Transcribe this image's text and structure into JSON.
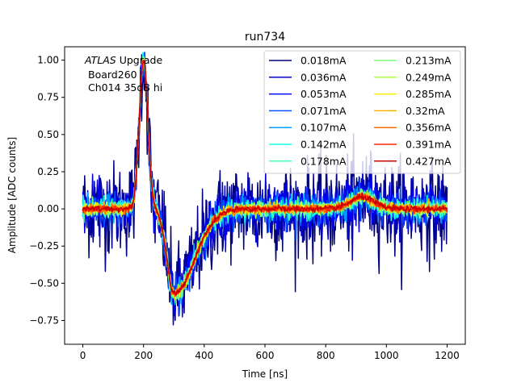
{
  "chart_data": {
    "type": "line",
    "title": "run734",
    "xlabel": "Time [ns]",
    "ylabel": "Amplitude [ADC counts]",
    "xlim": [
      -60,
      1260
    ],
    "ylim": [
      -0.91,
      1.09
    ],
    "xticks": [
      0,
      200,
      400,
      600,
      800,
      1000,
      1200
    ],
    "yticks": [
      -0.75,
      -0.5,
      -0.25,
      0.0,
      0.25,
      0.5,
      0.75,
      1.0
    ],
    "xtick_labels": [
      "0",
      "200",
      "400",
      "600",
      "800",
      "1000",
      "1200"
    ],
    "ytick_labels": [
      "−0.75",
      "−0.50",
      "−0.25",
      "0.00",
      "0.25",
      "0.50",
      "0.75",
      "1.00"
    ],
    "annotation": {
      "italic": "ATLAS",
      "line1_rest": " Upgrade",
      "line2": "Board260",
      "line3": "Ch014 35dB hi"
    },
    "legend_position": "top-right",
    "pulse_model": {
      "t_start": 0,
      "t_end": 1200,
      "t_step": 2,
      "baseline": 0.0,
      "peak_time": 200,
      "peak_amplitude": 1.0,
      "undershoot_time": 300,
      "undershoot_amplitude": -0.57,
      "bump_time": 920,
      "bump_amplitude": 0.08
    },
    "series": [
      {
        "name": "0.018mA",
        "color": "#00007f",
        "noise": 0.16
      },
      {
        "name": "0.036mA",
        "color": "#0000c9",
        "noise": 0.1
      },
      {
        "name": "0.053mA",
        "color": "#0000ff",
        "noise": 0.07
      },
      {
        "name": "0.071mA",
        "color": "#0050ff",
        "noise": 0.055
      },
      {
        "name": "0.107mA",
        "color": "#00a0ff",
        "noise": 0.04
      },
      {
        "name": "0.142mA",
        "color": "#14ffe2",
        "noise": 0.032
      },
      {
        "name": "0.178mA",
        "color": "#46ffb0",
        "noise": 0.027
      },
      {
        "name": "0.213mA",
        "color": "#7dff7a",
        "noise": 0.023
      },
      {
        "name": "0.249mA",
        "color": "#b0ff46",
        "noise": 0.02
      },
      {
        "name": "0.285mA",
        "color": "#f2f200",
        "noise": 0.018
      },
      {
        "name": "0.32mA",
        "color": "#ffb200",
        "noise": 0.016
      },
      {
        "name": "0.356mA",
        "color": "#ff6a00",
        "noise": 0.014
      },
      {
        "name": "0.391mA",
        "color": "#ff2500",
        "noise": 0.012
      },
      {
        "name": "0.427mA",
        "color": "#c80000",
        "noise": 0.01
      }
    ]
  }
}
